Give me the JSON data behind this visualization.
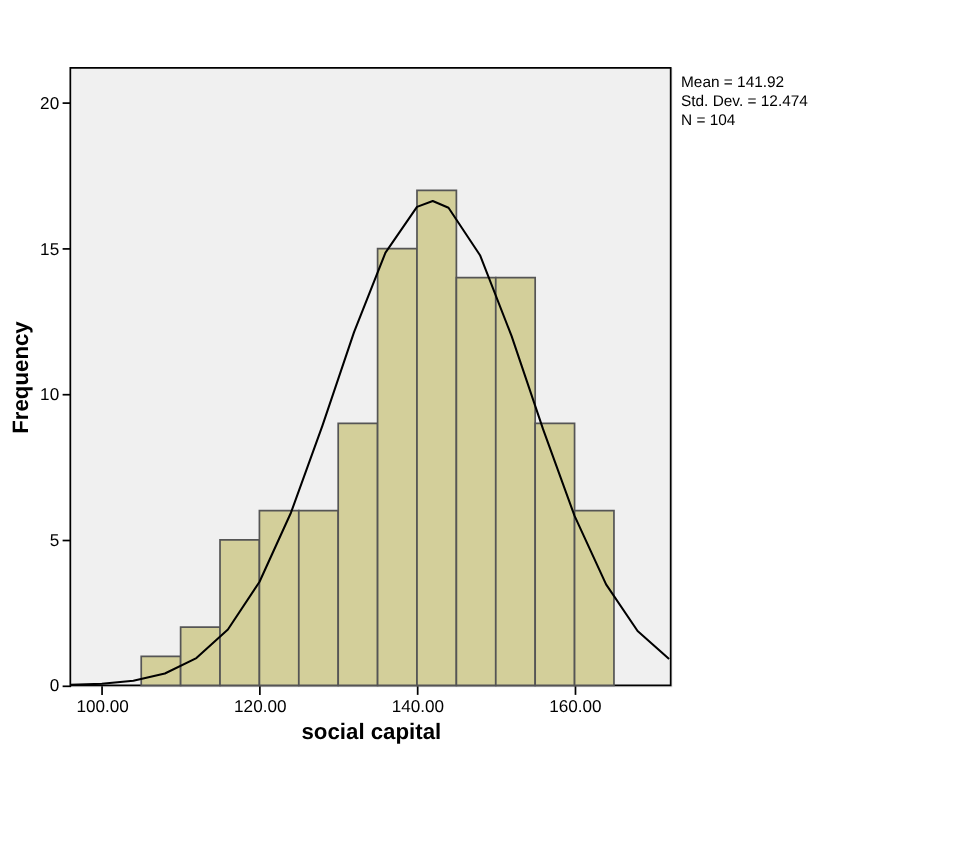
{
  "chart_data": {
    "type": "histogram",
    "xlabel": "social capital",
    "ylabel": "Frequency",
    "bins": [
      105,
      110,
      115,
      120,
      125,
      130,
      135,
      140,
      145,
      150,
      155,
      160,
      165
    ],
    "values": [
      1,
      2,
      5,
      6,
      6,
      9,
      15,
      17,
      14,
      14,
      9,
      6
    ],
    "color": "#d3cf9a",
    "series": [
      {
        "type": "line",
        "color": "#000000",
        "line_style": "solid",
        "x": [
          96,
          100,
          104,
          108,
          112,
          116,
          120,
          124,
          128,
          132,
          136,
          140,
          142,
          144,
          148,
          152,
          156,
          160,
          164,
          168,
          172
        ],
        "values": [
          0.02,
          0.06,
          0.16,
          0.41,
          0.94,
          1.92,
          3.55,
          5.93,
          8.92,
          12.12,
          14.86,
          16.43,
          16.63,
          16.4,
          14.77,
          12.0,
          8.8,
          5.82,
          3.47,
          1.87,
          0.91
        ]
      }
    ],
    "xlim": [
      96,
      172.2
    ],
    "ylim": [
      0,
      21.2
    ],
    "xticks": [
      {
        "value": 100,
        "label": "100.00"
      },
      {
        "value": 120,
        "label": "120.00"
      },
      {
        "value": 140,
        "label": "140.00"
      },
      {
        "value": 160,
        "label": "160.00"
      }
    ],
    "yticks": [
      0,
      5,
      10,
      15,
      20
    ],
    "grid": false,
    "annotations": [
      "Mean = 141.92",
      "Std. Dev. = 12.474",
      "N = 104"
    ]
  }
}
